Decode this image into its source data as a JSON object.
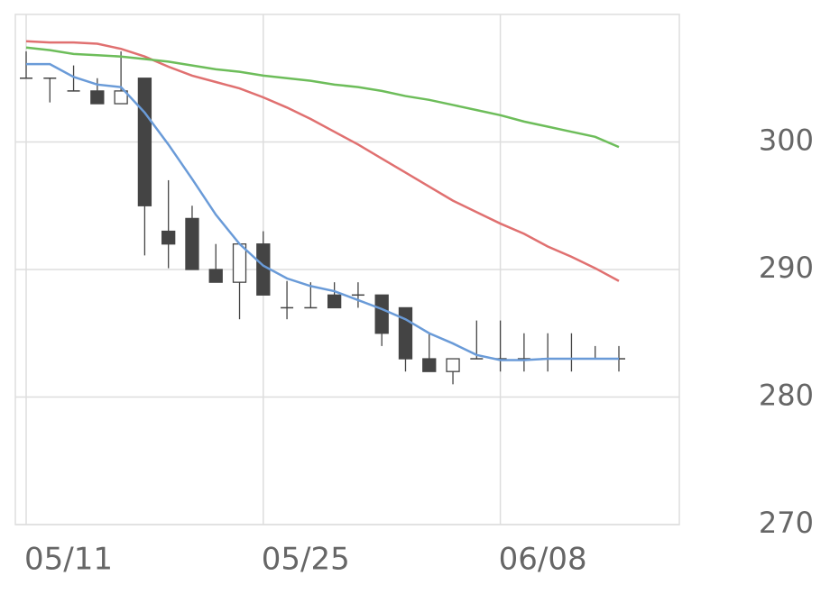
{
  "chart_data": {
    "type": "candlestick",
    "categories": [
      "05/11",
      null,
      null,
      null,
      null,
      null,
      null,
      null,
      null,
      null,
      "05/25",
      null,
      null,
      null,
      null,
      null,
      null,
      null,
      null,
      null,
      "06/08",
      null,
      null,
      null,
      null,
      null
    ],
    "open": [
      305,
      305,
      304,
      304,
      303,
      305,
      293,
      294,
      290,
      289,
      292,
      287,
      287,
      288,
      288,
      288,
      287,
      283,
      282,
      283,
      283,
      283,
      283,
      283,
      283,
      283
    ],
    "high": [
      307.1,
      305,
      306,
      305,
      307.1,
      305,
      297,
      295,
      292,
      292,
      293,
      289.1,
      289,
      289,
      289,
      288,
      287,
      285,
      283,
      286,
      286,
      285,
      285,
      285,
      284,
      284
    ],
    "low": [
      305,
      303.1,
      304,
      303,
      303,
      291.1,
      290.1,
      290,
      289,
      286.1,
      288,
      286.1,
      287,
      287,
      287,
      284,
      282,
      282,
      281,
      283,
      282,
      282,
      282,
      282,
      283,
      282
    ],
    "close": [
      305,
      305,
      304,
      303,
      304,
      295,
      292,
      290,
      289,
      292,
      288,
      287,
      287,
      287,
      288,
      285,
      283,
      282,
      283,
      283,
      283,
      283,
      283,
      283,
      283,
      283
    ],
    "candle_color": "#444444",
    "series": [
      {
        "color": "#6a9bd8",
        "values": [
          306.1,
          306.1,
          305.1,
          304.5,
          304.3,
          302.3,
          299.8,
          297.1,
          294.3,
          292.0,
          290.3,
          289.3,
          288.7,
          288.3,
          287.6,
          286.9,
          286.1,
          285.0,
          284.2,
          283.3,
          282.9,
          282.9,
          283.0,
          283.0,
          283.0,
          283.0
        ]
      },
      {
        "color": "#e07070",
        "values": [
          307.9,
          307.8,
          307.8,
          307.7,
          307.3,
          306.7,
          305.9,
          305.2,
          304.7,
          304.2,
          303.5,
          302.7,
          301.8,
          300.8,
          299.8,
          298.7,
          297.6,
          296.5,
          295.4,
          294.5,
          293.6,
          292.8,
          291.8,
          291.0,
          290.1,
          289.1
        ]
      },
      {
        "color": "#6dbd5a",
        "values": [
          307.4,
          307.2,
          306.9,
          306.8,
          306.7,
          306.5,
          306.3,
          306.0,
          305.7,
          305.5,
          305.2,
          305.0,
          304.8,
          304.5,
          304.3,
          304.0,
          303.6,
          303.3,
          302.9,
          302.5,
          302.1,
          301.6,
          301.2,
          300.8,
          300.4,
          299.6
        ]
      }
    ],
    "ylim": [
      270,
      310
    ],
    "yticks": [
      270,
      280,
      290,
      300
    ],
    "grid": true
  }
}
